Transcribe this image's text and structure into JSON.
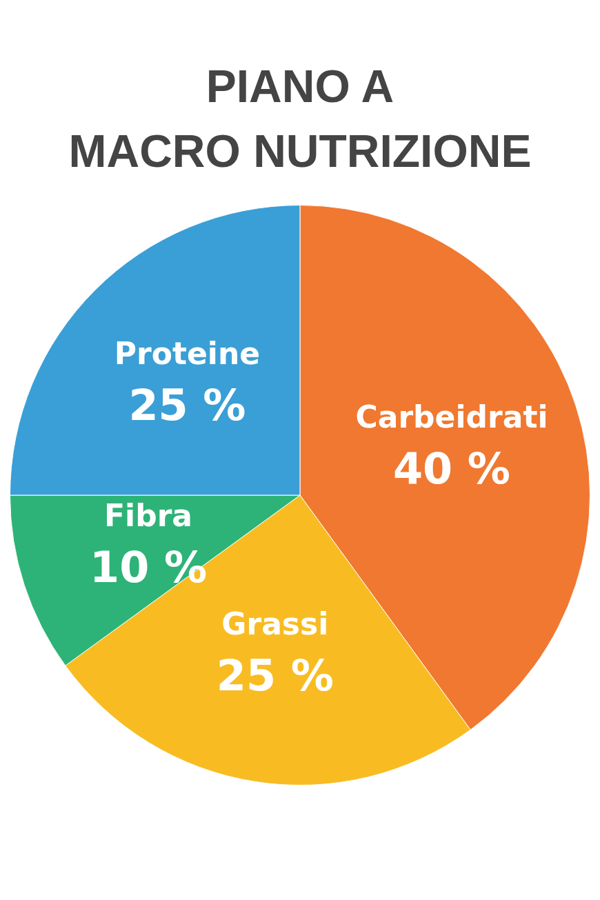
{
  "chart_data": {
    "type": "pie",
    "title": "PIANO A\nMACRO NUTRIZIONE",
    "categories": [
      "Carbeidrati",
      "Grassi",
      "Fibra",
      "Proteine"
    ],
    "values": [
      40,
      25,
      10,
      25
    ],
    "value_labels": [
      "40 %",
      "25 %",
      "10 %",
      "25 %"
    ],
    "colors": [
      "#f07830",
      "#f8bc22",
      "#2db377",
      "#3a9fd6"
    ],
    "legend": false
  }
}
